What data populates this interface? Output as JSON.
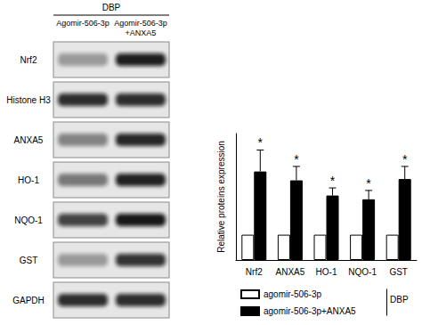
{
  "chart_data": {
    "type": "bar",
    "y_label": "Relative proteins expression",
    "categories": [
      "Nrf2",
      "ANXA5",
      "HO-1",
      "NQO-1",
      "GST"
    ],
    "series": [
      {
        "name": "agomir-506-3p",
        "color": "#ffffff",
        "values": [
          1,
          1,
          1,
          1,
          1
        ]
      },
      {
        "name": "agomir-506-3p+ANXA5",
        "color": "#000000",
        "values": [
          3.5,
          3.15,
          2.55,
          2.4,
          3.2
        ],
        "errors": [
          0.85,
          0.55,
          0.3,
          0.35,
          0.5
        ],
        "significance": [
          "*",
          "*",
          "*",
          "*",
          "*"
        ]
      }
    ],
    "group_label": "DBP",
    "ylim": [
      0,
      5
    ],
    "grid": false,
    "legend": "bottom",
    "tick_labels": "x"
  },
  "blot": {
    "condition": "DBP",
    "lanes": [
      [
        "Agomir-506-3p"
      ],
      [
        "Agomir-506-3p",
        "+ANXA5"
      ]
    ],
    "rows": [
      "Nrf2",
      "Histone H3",
      "ANXA5",
      "HO-1",
      "NQO-1",
      "GST",
      "GAPDH"
    ]
  }
}
